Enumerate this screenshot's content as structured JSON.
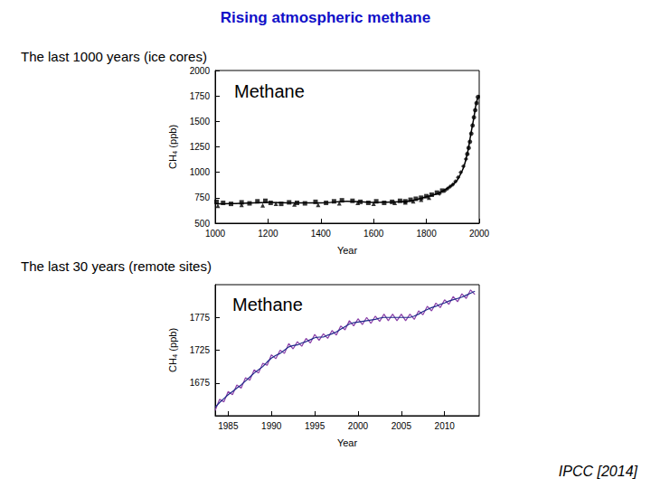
{
  "title": "Rising atmospheric methane",
  "source": "IPCC [2014]",
  "chart_data": [
    {
      "type": "line",
      "title": "The last 1000 years (ice cores)",
      "annotation": "Methane",
      "x_label": "Year",
      "y_label": "CH₄ (ppb)",
      "xlim": [
        1000,
        2000
      ],
      "xticks": [
        1000,
        1200,
        1400,
        1600,
        1800,
        2000
      ],
      "ylim": [
        500,
        2000
      ],
      "yticks": [
        500,
        750,
        1000,
        1250,
        1500,
        1750,
        2000
      ],
      "grid": false,
      "series": [
        {
          "type": "line",
          "color": "#000000",
          "line_style": "solid",
          "x": [
            1000,
            1100,
            1200,
            1300,
            1400,
            1500,
            1600,
            1700,
            1750,
            1800,
            1850,
            1900,
            1925,
            1950,
            1970,
            1980,
            1990,
            2000
          ],
          "values": [
            690,
            695,
            705,
            700,
            700,
            715,
            705,
            710,
            725,
            760,
            800,
            880,
            960,
            1130,
            1400,
            1540,
            1690,
            1760
          ]
        },
        {
          "type": "scatter",
          "color": "#000000",
          "marker": "square",
          "x": [
            1005,
            1030,
            1060,
            1100,
            1130,
            1160,
            1190,
            1210,
            1250,
            1280,
            1310,
            1340,
            1380,
            1420,
            1450,
            1480,
            1520,
            1550,
            1580,
            1610,
            1640,
            1670,
            1700,
            1720,
            1740,
            1760,
            1780,
            1800,
            1820,
            1840,
            1860
          ],
          "values": [
            710,
            700,
            690,
            705,
            695,
            715,
            720,
            700,
            690,
            705,
            700,
            695,
            710,
            700,
            715,
            725,
            720,
            710,
            700,
            715,
            700,
            710,
            720,
            715,
            730,
            740,
            750,
            765,
            780,
            800,
            820
          ]
        },
        {
          "type": "scatter",
          "color": "#000000",
          "marker": "triangle",
          "x": [
            1010,
            1100,
            1180,
            1230,
            1300,
            1390,
            1470,
            1540,
            1600,
            1680,
            1720,
            1750,
            1780,
            1810
          ],
          "values": [
            670,
            680,
            675,
            690,
            685,
            680,
            695,
            700,
            690,
            700,
            705,
            715,
            730,
            750
          ]
        },
        {
          "type": "scatter",
          "color": "#000000",
          "marker": "diamond",
          "x": [
            1850,
            1870,
            1880,
            1890,
            1900,
            1910,
            1920,
            1930,
            1940,
            1950
          ],
          "values": [
            790,
            820,
            840,
            860,
            880,
            910,
            950,
            1000,
            1060,
            1130
          ]
        },
        {
          "type": "scatter",
          "color": "#000000",
          "marker": "circle",
          "x": [
            1955,
            1960,
            1965,
            1970,
            1975,
            1980,
            1985,
            1990,
            1995
          ],
          "values": [
            1180,
            1240,
            1300,
            1380,
            1460,
            1540,
            1610,
            1680,
            1740
          ]
        }
      ]
    },
    {
      "type": "line",
      "title": "The last 30 years (remote sites)",
      "annotation": "Methane",
      "x_label": "Year",
      "y_label": "CH₄ (ppb)",
      "xlim": [
        1983.5,
        2014
      ],
      "xticks": [
        1985,
        1990,
        1995,
        2000,
        2005,
        2010
      ],
      "ylim": [
        1625,
        1825
      ],
      "yticks": [
        1675,
        1725,
        1775
      ],
      "grid": false,
      "x": [
        1983.5,
        1984,
        1984.5,
        1985,
        1985.5,
        1986,
        1986.5,
        1987,
        1987.5,
        1988,
        1988.5,
        1989,
        1989.5,
        1990,
        1990.5,
        1991,
        1991.5,
        1992,
        1992.5,
        1993,
        1993.5,
        1994,
        1994.5,
        1995,
        1995.5,
        1996,
        1996.5,
        1997,
        1997.5,
        1998,
        1998.5,
        1999,
        1999.5,
        2000,
        2000.5,
        2001,
        2001.5,
        2002,
        2002.5,
        2003,
        2003.5,
        2004,
        2004.5,
        2005,
        2005.5,
        2006,
        2006.5,
        2007,
        2007.5,
        2008,
        2008.5,
        2009,
        2009.5,
        2010,
        2010.5,
        2011,
        2011.5,
        2012,
        2012.5,
        2013,
        2013.5
      ],
      "series": [
        {
          "type": "line",
          "color": "#8a3fa8",
          "line_style": "solid",
          "values": [
            1633,
            1650,
            1646,
            1662,
            1657,
            1672,
            1667,
            1683,
            1679,
            1695,
            1690,
            1705,
            1702,
            1718,
            1712,
            1725,
            1720,
            1735,
            1727,
            1738,
            1731,
            1743,
            1736,
            1749,
            1740,
            1750,
            1743,
            1755,
            1748,
            1762,
            1756,
            1770,
            1762,
            1773,
            1764,
            1775,
            1766,
            1777,
            1769,
            1780,
            1770,
            1780,
            1770,
            1780,
            1770,
            1780,
            1772,
            1785,
            1779,
            1792,
            1785,
            1797,
            1790,
            1802,
            1795,
            1807,
            1799,
            1811,
            1804,
            1817,
            1810
          ]
        },
        {
          "type": "line",
          "color": "#1f2a8a",
          "line_style": "solid",
          "values": [
            1638,
            1645,
            1651,
            1657,
            1662,
            1667,
            1672,
            1678,
            1684,
            1690,
            1695,
            1700,
            1707,
            1713,
            1717,
            1720,
            1725,
            1730,
            1732,
            1733,
            1736,
            1738,
            1741,
            1744,
            1745,
            1745,
            1748,
            1750,
            1753,
            1757,
            1761,
            1765,
            1767,
            1768,
            1769,
            1770,
            1771,
            1772,
            1774,
            1775,
            1775,
            1775,
            1775,
            1775,
            1775,
            1775,
            1777,
            1780,
            1784,
            1787,
            1790,
            1792,
            1795,
            1797,
            1800,
            1802,
            1804,
            1806,
            1809,
            1812,
            1815
          ]
        }
      ]
    }
  ]
}
